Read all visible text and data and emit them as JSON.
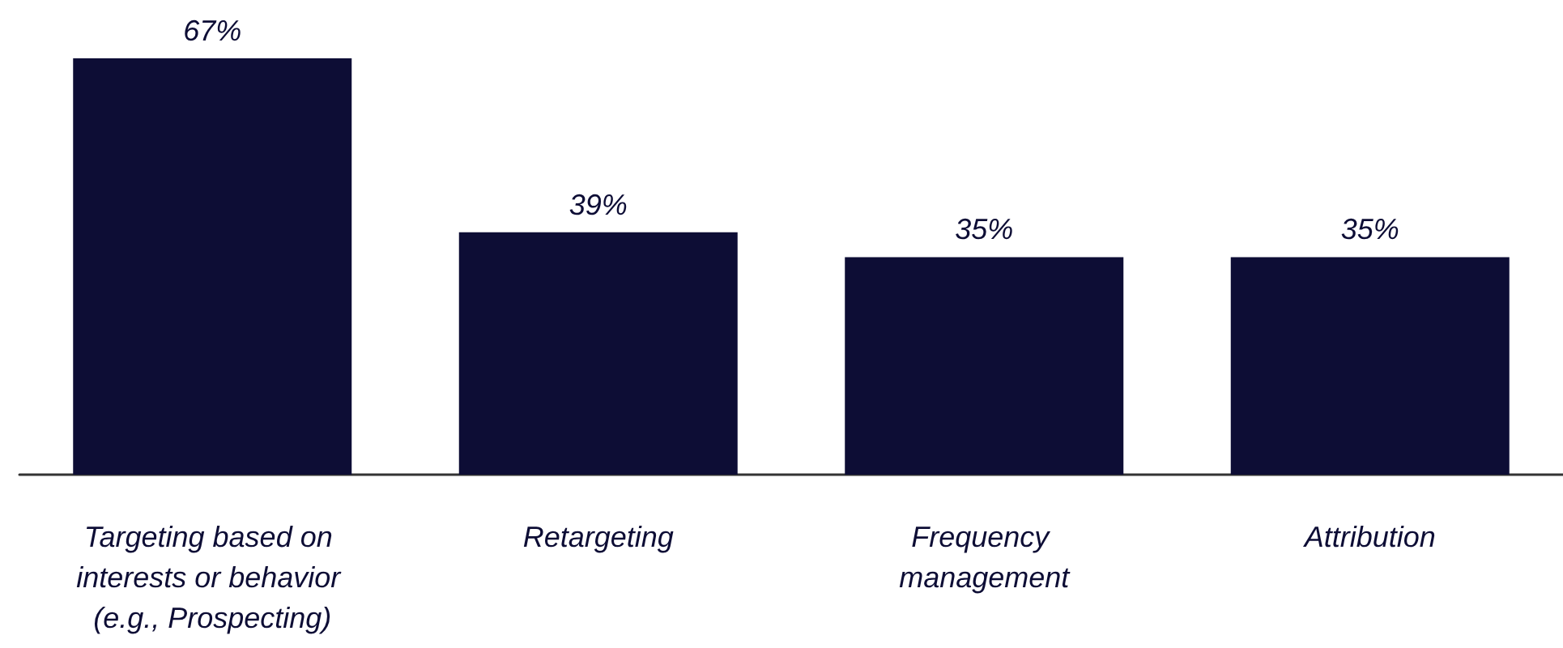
{
  "chart_data": {
    "type": "bar",
    "categories": [
      "Targeting based on interests or behavior (e.g., Prospecting)",
      "Retargeting",
      "Frequency management",
      "Attribution"
    ],
    "values": [
      67,
      39,
      35,
      35
    ],
    "value_labels": [
      "67%",
      "39%",
      "35%",
      "35%"
    ],
    "color": "#0d0d35"
  }
}
